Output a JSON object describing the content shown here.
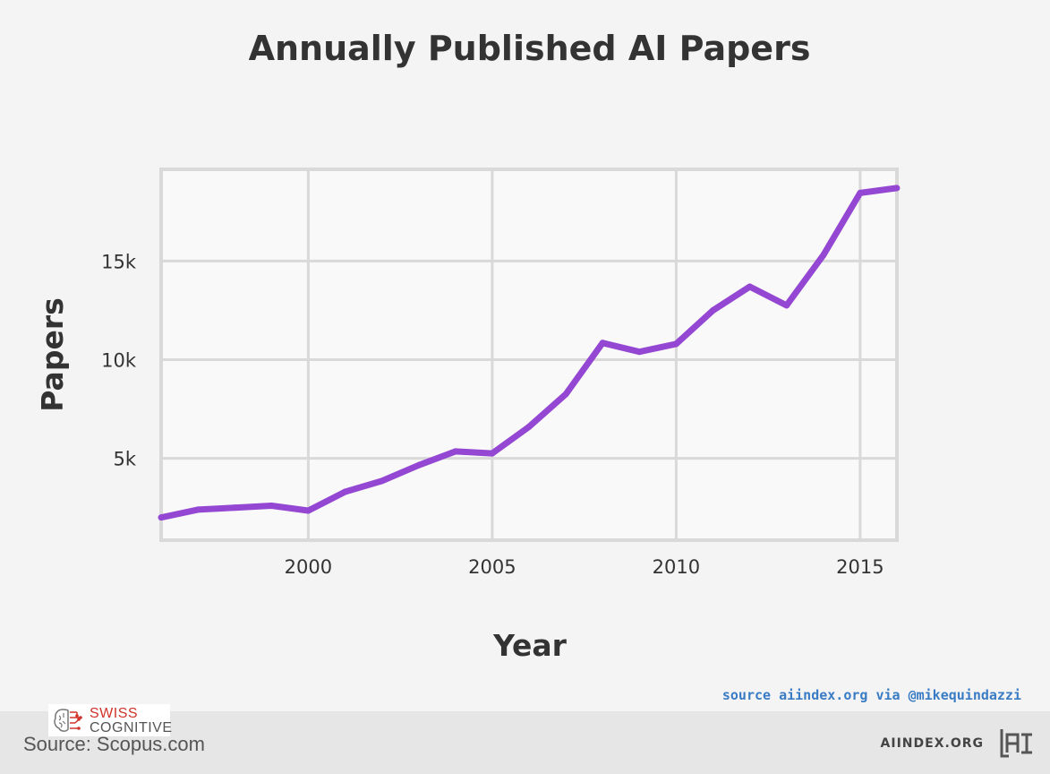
{
  "chart_data": {
    "type": "line",
    "title": "Annually Published AI Papers",
    "xlabel": "Year",
    "ylabel": "Papers",
    "xlim": [
      1996,
      2016
    ],
    "ylim": [
      850,
      19650
    ],
    "x_ticks": [
      2000,
      2005,
      2010,
      2015
    ],
    "x_tick_labels": [
      "2000",
      "2005",
      "2010",
      "2015"
    ],
    "y_ticks": [
      5000,
      10000,
      15000
    ],
    "y_tick_labels": [
      "5k",
      "10k",
      "15k"
    ],
    "grid": true,
    "legend": "none",
    "series": [
      {
        "color": "#9447d2",
        "x": [
          1996,
          1997,
          1998,
          1999,
          2000,
          2001,
          2002,
          2003,
          2004,
          2005,
          2006,
          2007,
          2008,
          2009,
          2010,
          2011,
          2012,
          2013,
          2014,
          2015,
          2016
        ],
        "y": [
          2000,
          2400,
          2500,
          2600,
          2350,
          3300,
          3850,
          4650,
          5350,
          5250,
          6600,
          8250,
          10850,
          10400,
          10800,
          12500,
          13700,
          12750,
          15300,
          18450,
          18700
        ]
      }
    ]
  },
  "source_credit": "source aiindex.org via @mikequindazzi",
  "footer": {
    "source": "Source: Scopus.com",
    "brand": "AIINDEX.ORG",
    "logo_text": "AI"
  },
  "watermark": {
    "line1": "SWISS",
    "line2": "COGNITIVE"
  }
}
